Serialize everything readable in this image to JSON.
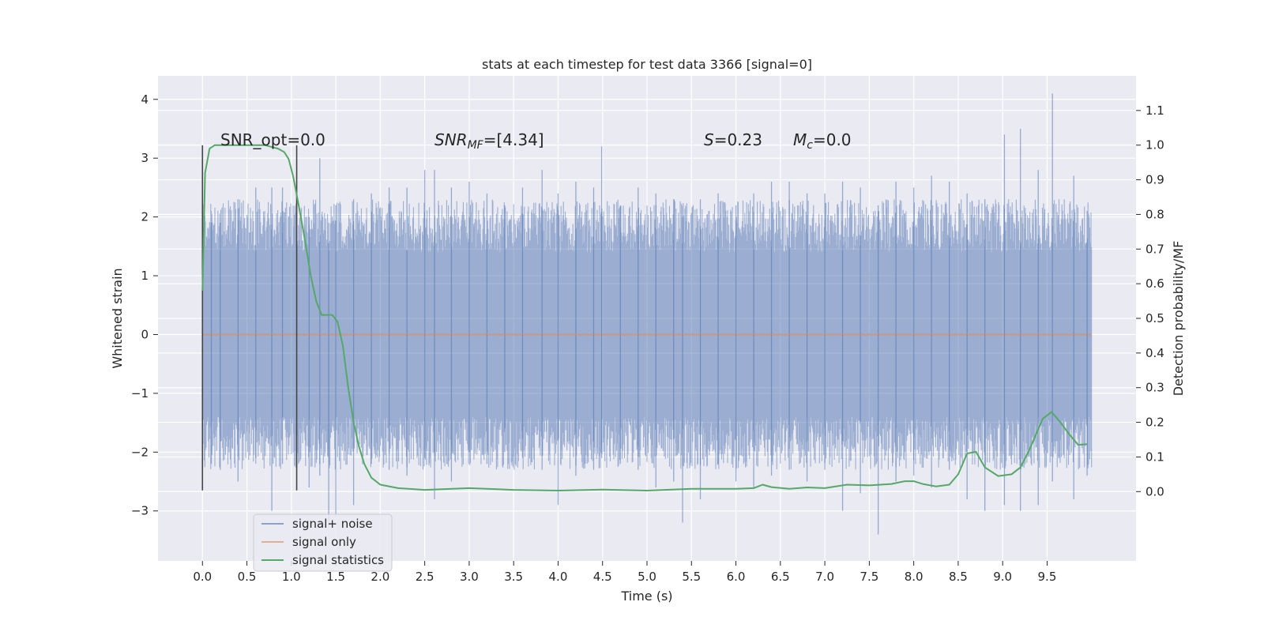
{
  "chart_data": {
    "type": "line",
    "title": "stats at each timestep for test data 3366 [signal=0]",
    "xlabel": "Time (s)",
    "ylabel": "Whitened strain",
    "y2label": "Detection probability/MF",
    "xlim": [
      -0.5,
      10.5
    ],
    "ylim": [
      -3.85,
      4.4
    ],
    "y2lim": [
      -0.2,
      1.2
    ],
    "xticks": [
      0.0,
      0.5,
      1.0,
      1.5,
      2.0,
      2.5,
      3.0,
      3.5,
      4.0,
      4.5,
      5.0,
      5.5,
      6.0,
      6.5,
      7.0,
      7.5,
      8.0,
      8.5,
      9.0,
      9.5
    ],
    "xtick_labels": [
      "0.0",
      "0.5",
      "1.0",
      "1.5",
      "2.0",
      "2.5",
      "3.0",
      "3.5",
      "4.0",
      "4.5",
      "5.0",
      "5.5",
      "6.0",
      "6.5",
      "7.0",
      "7.5",
      "8.0",
      "8.5",
      "9.0",
      "9.5"
    ],
    "yticks": [
      4,
      3,
      2,
      1,
      0,
      -1,
      -2,
      -3
    ],
    "ytick_labels": [
      "4",
      "3",
      "2",
      "1",
      "0",
      "−1",
      "−2",
      "−3"
    ],
    "y2ticks": [
      1.1,
      1.0,
      0.9,
      0.8,
      0.7,
      0.6,
      0.5,
      0.4,
      0.3,
      0.2,
      0.1,
      0.0
    ],
    "y2tick_labels": [
      "1.1",
      "1.0",
      "0.9",
      "0.8",
      "0.7",
      "0.6",
      "0.5",
      "0.4",
      "0.3",
      "0.2",
      "0.1",
      "0.0"
    ],
    "grid": true,
    "legend_position": "lower-left",
    "legend": [
      "signal+ noise",
      "signal only",
      "signal statistics"
    ],
    "colors": {
      "plot_bg": "#eaeaf2",
      "grid": "#ffffff",
      "noise": "#4c72b0",
      "signal_only": "#dd8452",
      "stats": "#55a868",
      "vline": "#444444"
    },
    "annotations": {
      "snr_opt": "SNR_opt=0.0",
      "snr_mf_prefix": "SNR",
      "snr_mf_sub": "MF",
      "snr_mf_suffix": "=[4.34]",
      "s_var": "S",
      "s_value": "=0.23",
      "mc_var": "M",
      "mc_sub": "c",
      "mc_value": "=0.0"
    },
    "vertical_lines": {
      "x": [
        0.0,
        1.06
      ],
      "y_range": [
        -2.65,
        3.22
      ]
    },
    "noise_series": {
      "name": "signal+ noise",
      "x_range": [
        0.0,
        10.0
      ],
      "spikes": [
        [
          0.0,
          2.2,
          -1.3
        ],
        [
          0.1,
          1.9,
          -2.2
        ],
        [
          0.2,
          1.9,
          -2.3
        ],
        [
          0.4,
          2.3,
          -2.5
        ],
        [
          0.6,
          2.5,
          -2.1
        ],
        [
          0.78,
          2.5,
          -3.0
        ],
        [
          0.9,
          2.5,
          -2.2
        ],
        [
          1.2,
          2.0,
          -2.6
        ],
        [
          1.32,
          3.0,
          -2.4
        ],
        [
          1.42,
          1.9,
          -3.3
        ],
        [
          1.5,
          2.2,
          -3.1
        ],
        [
          1.7,
          2.3,
          -2.9
        ],
        [
          1.9,
          2.4,
          -2.2
        ],
        [
          2.1,
          2.5,
          -2.3
        ],
        [
          2.3,
          2.5,
          -2.4
        ],
        [
          2.5,
          2.8,
          -2.1
        ],
        [
          2.61,
          2.8,
          -2.8
        ],
        [
          2.8,
          2.5,
          -2.5
        ],
        [
          3.0,
          2.6,
          -2.0
        ],
        [
          3.2,
          2.4,
          -2.2
        ],
        [
          3.4,
          2.2,
          -2.0
        ],
        [
          3.6,
          2.5,
          -2.1
        ],
        [
          3.82,
          2.8,
          -2.3
        ],
        [
          4.0,
          2.4,
          -2.9
        ],
        [
          4.2,
          2.6,
          -2.4
        ],
        [
          4.4,
          2.5,
          -2.3
        ],
        [
          4.49,
          3.2,
          -2.1
        ],
        [
          4.7,
          2.2,
          -2.2
        ],
        [
          4.9,
          2.5,
          -2.3
        ],
        [
          5.1,
          2.4,
          -2.6
        ],
        [
          5.3,
          2.3,
          -2.5
        ],
        [
          5.4,
          2.0,
          -3.2
        ],
        [
          5.6,
          2.3,
          -2.8
        ],
        [
          5.8,
          2.4,
          -2.2
        ],
        [
          6.0,
          2.2,
          -2.5
        ],
        [
          6.2,
          2.4,
          -2.6
        ],
        [
          6.4,
          2.6,
          -2.4
        ],
        [
          6.6,
          2.6,
          -2.3
        ],
        [
          6.8,
          2.4,
          -2.5
        ],
        [
          7.0,
          2.4,
          -2.3
        ],
        [
          7.2,
          2.6,
          -3.0
        ],
        [
          7.4,
          2.5,
          -2.7
        ],
        [
          7.6,
          2.2,
          -3.4
        ],
        [
          7.8,
          2.6,
          -2.5
        ],
        [
          8.0,
          2.5,
          -2.4
        ],
        [
          8.2,
          2.7,
          -2.6
        ],
        [
          8.4,
          2.6,
          -2.3
        ],
        [
          8.6,
          2.4,
          -2.8
        ],
        [
          8.8,
          2.3,
          -3.0
        ],
        [
          9.02,
          3.4,
          -2.9
        ],
        [
          9.2,
          3.5,
          -3.0
        ],
        [
          9.4,
          2.8,
          -2.9
        ],
        [
          9.56,
          4.1,
          -2.5
        ],
        [
          9.8,
          2.7,
          -2.8
        ],
        [
          9.95,
          2.1,
          -2.4
        ]
      ]
    },
    "signal_only_series": {
      "name": "signal only",
      "x": [
        0.0,
        10.0
      ],
      "y": [
        0.0,
        0.0
      ]
    },
    "stats_series": {
      "name": "signal statistics",
      "x": [
        0.0,
        0.03,
        0.08,
        0.14,
        0.2,
        0.3,
        0.5,
        0.7,
        0.85,
        0.92,
        0.97,
        1.02,
        1.08,
        1.15,
        1.22,
        1.28,
        1.34,
        1.4,
        1.46,
        1.52,
        1.58,
        1.64,
        1.7,
        1.76,
        1.82,
        1.9,
        2.0,
        2.2,
        2.5,
        3.0,
        3.5,
        4.0,
        4.5,
        5.0,
        5.5,
        6.0,
        6.2,
        6.3,
        6.4,
        6.6,
        6.8,
        7.0,
        7.25,
        7.5,
        7.75,
        7.9,
        8.0,
        8.1,
        8.25,
        8.4,
        8.5,
        8.6,
        8.7,
        8.8,
        8.95,
        9.1,
        9.2,
        9.3,
        9.45,
        9.55,
        9.65,
        9.75,
        9.85,
        9.95
      ],
      "y": [
        0.58,
        0.92,
        0.99,
        1.0,
        1.0,
        1.0,
        1.0,
        1.0,
        0.99,
        0.98,
        0.96,
        0.91,
        0.83,
        0.73,
        0.62,
        0.55,
        0.51,
        0.51,
        0.51,
        0.49,
        0.42,
        0.3,
        0.2,
        0.13,
        0.08,
        0.04,
        0.02,
        0.01,
        0.005,
        0.01,
        0.005,
        0.003,
        0.006,
        0.003,
        0.008,
        0.008,
        0.01,
        0.02,
        0.013,
        0.008,
        0.012,
        0.01,
        0.02,
        0.018,
        0.022,
        0.03,
        0.03,
        0.022,
        0.015,
        0.02,
        0.05,
        0.11,
        0.115,
        0.07,
        0.045,
        0.05,
        0.07,
        0.12,
        0.21,
        0.23,
        0.2,
        0.165,
        0.135,
        0.137
      ]
    }
  }
}
